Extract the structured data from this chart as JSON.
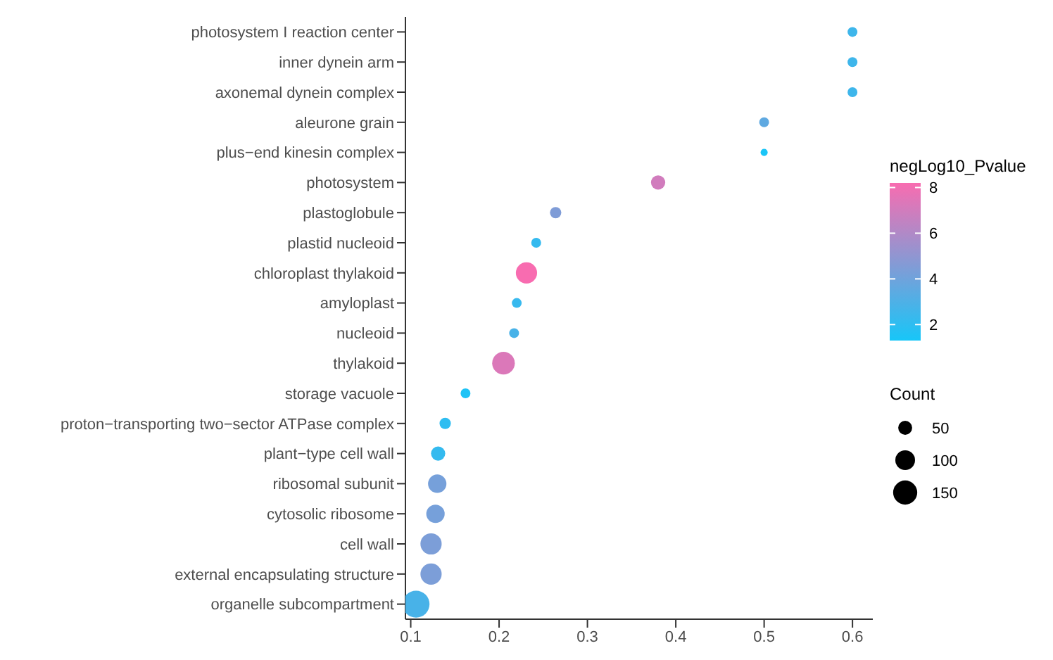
{
  "chart_data": {
    "type": "bubble",
    "orientation": "horizontal",
    "categories": [
      "photosystem I reaction center",
      "inner dynein arm",
      "axonemal dynein complex",
      "aleurone grain",
      "plus−end kinesin complex",
      "photosystem",
      "plastoglobule",
      "plastid nucleoid",
      "chloroplast thylakoid",
      "amyloplast",
      "nucleoid",
      "thylakoid",
      "storage vacuole",
      "proton−transporting two−sector ATPase complex",
      "plant−type cell wall",
      "ribosomal subunit",
      "cytosolic ribosome",
      "cell wall",
      "external encapsulating structure",
      "organelle subcompartment"
    ],
    "values": [
      0.6,
      0.6,
      0.6,
      0.5,
      0.5,
      0.38,
      0.264,
      0.242,
      0.231,
      0.22,
      0.217,
      0.205,
      0.162,
      0.139,
      0.131,
      0.13,
      0.128,
      0.123,
      0.123,
      0.106
    ],
    "sizes": [
      25,
      25,
      25,
      25,
      13,
      52,
      33,
      25,
      116,
      25,
      25,
      132,
      25,
      33,
      52,
      87,
      87,
      116,
      116,
      187
    ],
    "cvalues": [
      2.5,
      2.5,
      2.5,
      3.5,
      1.4,
      7,
      4.5,
      2.2,
      8.2,
      2.3,
      2.8,
      7.3,
      1.5,
      2,
      2.2,
      4.2,
      4.2,
      4.4,
      4.4,
      2.8
    ],
    "xlim": [
      0.094,
      0.623
    ],
    "xticks": [
      0.1,
      0.2,
      0.3,
      0.4,
      0.5,
      0.6
    ],
    "clabel": "negLog10_Pvalue",
    "clim": [
      1.3,
      8.2
    ],
    "cticks": [
      2,
      4,
      6,
      8
    ],
    "legend_title": "Count",
    "size_legend": [
      50,
      100,
      150
    ],
    "grid": false
  }
}
